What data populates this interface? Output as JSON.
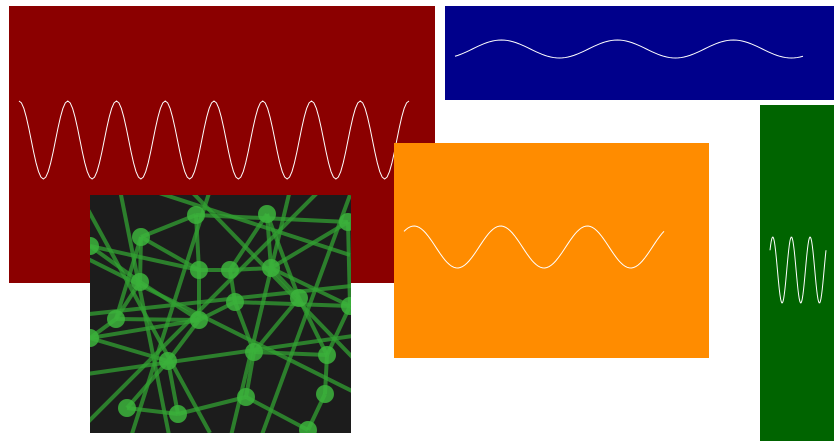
{
  "panels": [
    {
      "id": "panel-red",
      "kind": "sine-wave",
      "background": "#8b0000",
      "wave_color": "#ffffff",
      "cycles": 8
    },
    {
      "id": "panel-blue",
      "kind": "sine-wave",
      "background": "#00008b",
      "wave_color": "#ffffff",
      "cycles": 3
    },
    {
      "id": "panel-orange",
      "kind": "sine-wave",
      "background": "#ff8c00",
      "wave_color": "#ffffff",
      "cycles": 3
    },
    {
      "id": "panel-green",
      "kind": "sine-wave",
      "background": "#006400",
      "wave_color": "#ffffff",
      "cycles": 3
    },
    {
      "id": "panel-network",
      "kind": "network-graph",
      "background": "#1c1c1c",
      "node_color": "#3cb43c",
      "edge_color": "#32a032"
    }
  ]
}
